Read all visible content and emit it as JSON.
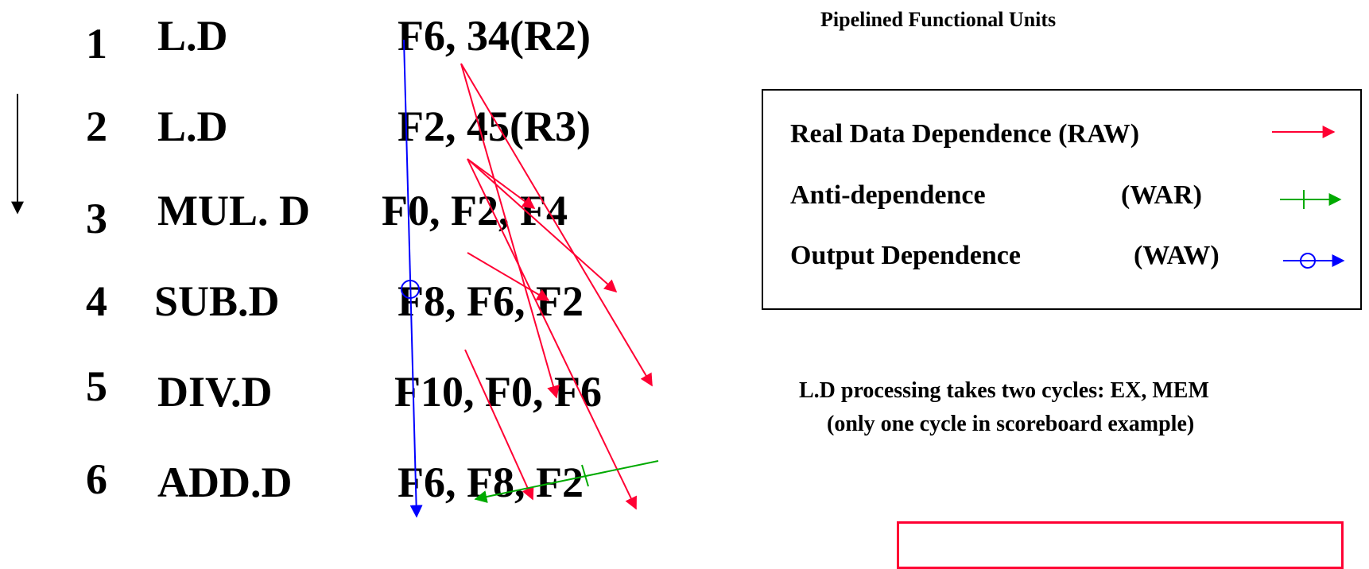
{
  "instructions": [
    {
      "num": "1",
      "op": "L.D",
      "args": "F6, 34(R2)"
    },
    {
      "num": "2",
      "op": "L.D",
      "args": "F2, 45(R3)"
    },
    {
      "num": "3",
      "op": "MUL. D",
      "args": "F0, F2, F4"
    },
    {
      "num": "4",
      "op": "SUB.D",
      "args": "F8, F6, F2"
    },
    {
      "num": "5",
      "op": "DIV.D",
      "args": "F10, F0, F6"
    },
    {
      "num": "6",
      "op": "ADD.D",
      "args": "F6, F8, F2"
    }
  ],
  "title": "Pipelined Functional Units",
  "legend": {
    "raw": {
      "label": "Real Data Dependence (RAW)",
      "color": "#ff0033"
    },
    "war": {
      "label": "Anti-dependence",
      "tag": "(WAR)",
      "color": "#00aa00"
    },
    "waw": {
      "label": "Output Dependence",
      "tag": "(WAW)",
      "color": "#0000ff"
    }
  },
  "note": {
    "line1": "L.D processing takes two cycles: EX, MEM",
    "line2": "(only one cycle in scoreboard example)"
  }
}
